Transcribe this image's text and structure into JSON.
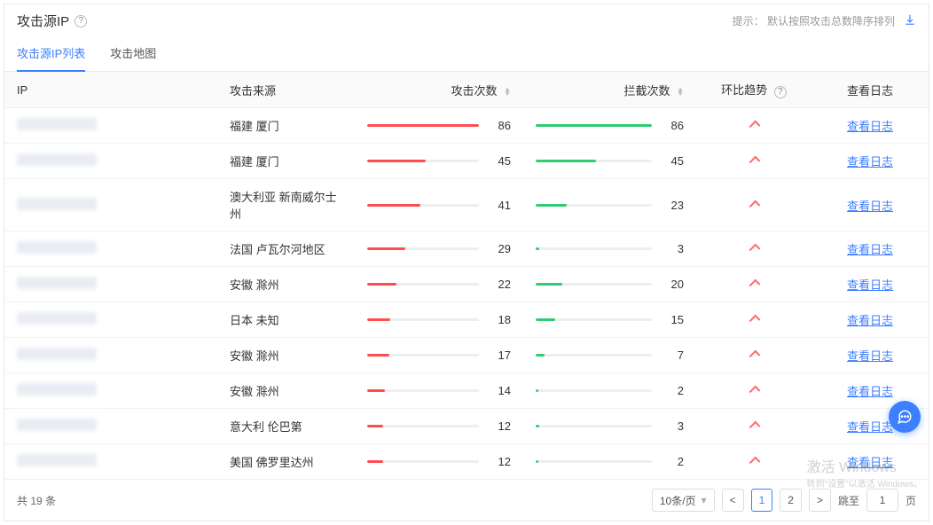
{
  "header": {
    "title": "攻击源IP",
    "hint_label": "提示：",
    "hint_text": "默认按照攻击总数降序排列"
  },
  "tabs": [
    {
      "label": "攻击源IP列表",
      "active": true
    },
    {
      "label": "攻击地图",
      "active": false
    }
  ],
  "columns": {
    "ip": "IP",
    "source": "攻击来源",
    "attacks": "攻击次数",
    "blocks": "拦截次数",
    "trend": "环比趋势",
    "log": "查看日志"
  },
  "colors": {
    "attack_bar": "#ff4d4f",
    "block_bar": "#2fcb72",
    "track": "#eeeeee",
    "link": "#3d7fff",
    "trend_up": "#ff6a6a"
  },
  "max_value": 86,
  "rows": [
    {
      "source": "福建 厦门",
      "attacks": 86,
      "blocks": 86,
      "trend": "up"
    },
    {
      "source": "福建 厦门",
      "attacks": 45,
      "blocks": 45,
      "trend": "up"
    },
    {
      "source": "澳大利亚 新南威尔士州",
      "attacks": 41,
      "blocks": 23,
      "trend": "up"
    },
    {
      "source": "法国 卢瓦尔河地区",
      "attacks": 29,
      "blocks": 3,
      "trend": "up"
    },
    {
      "source": "安徽 滁州",
      "attacks": 22,
      "blocks": 20,
      "trend": "up"
    },
    {
      "source": "日本 未知",
      "attacks": 18,
      "blocks": 15,
      "trend": "up"
    },
    {
      "source": "安徽 滁州",
      "attacks": 17,
      "blocks": 7,
      "trend": "up"
    },
    {
      "source": "安徽 滁州",
      "attacks": 14,
      "blocks": 2,
      "trend": "up"
    },
    {
      "source": "意大利 伦巴第",
      "attacks": 12,
      "blocks": 3,
      "trend": "up"
    },
    {
      "source": "美国 佛罗里达州",
      "attacks": 12,
      "blocks": 2,
      "trend": "up"
    }
  ],
  "log_link_label": "查看日志",
  "footer": {
    "total_prefix": "共",
    "total_count": 19,
    "total_suffix": "条",
    "page_size_label": "10条/页",
    "prev": "<",
    "pages": [
      "1",
      "2"
    ],
    "next": ">",
    "jump_label": "跳至",
    "jump_value": "1",
    "jump_suffix": "页"
  },
  "watermark": {
    "line1": "激活 Windows",
    "line2": "转到\"设置\"以激活 Windows。"
  }
}
